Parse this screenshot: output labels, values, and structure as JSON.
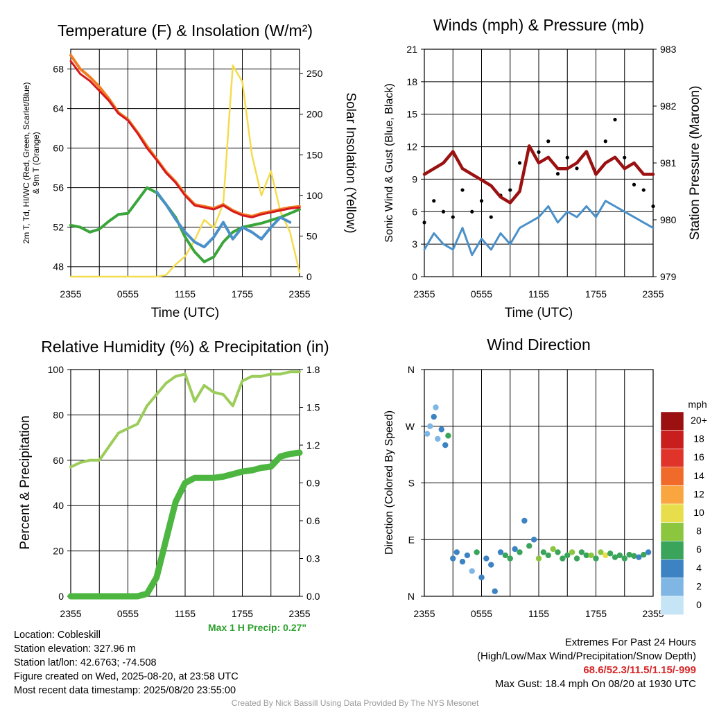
{
  "colors": {
    "temp": "#d7191c",
    "dewpoint": "#3aa53a",
    "heatindex": "#4a90c9",
    "temp9m": "#f17d22",
    "solar": "#f4dc4e",
    "wind": "#4a90c9",
    "gust": "#000000",
    "pressure": "#9b1111",
    "rh": "#9ccc5a",
    "precip": "#4db640",
    "maxprecip": "#2ca02c",
    "extremes": "#d62728",
    "credit": "#9a9a9a"
  },
  "x_ticks": [
    "2355",
    "0555",
    "1155",
    "1755",
    "2355"
  ],
  "chart_data": [
    {
      "type": "line",
      "title": "Temperature (F) & Insolation (W/m²)",
      "xlabel": "Time (UTC)",
      "ylabel": "2m T, Td, HI/WC (Red, Green, Scarlet/Blue) & 9m T (Orange)",
      "y2label": "Solar Insolation (Yellow)",
      "ylim": [
        47,
        70
      ],
      "y_ticks": [
        48,
        52,
        56,
        60,
        64,
        68
      ],
      "y2lim": [
        0,
        280
      ],
      "y2_ticks": [
        0,
        50,
        100,
        150,
        200,
        250
      ],
      "x": [
        0,
        1,
        2,
        3,
        4,
        5,
        6,
        7,
        8,
        9,
        10,
        11,
        12,
        13,
        14,
        15,
        16,
        17,
        18,
        19,
        20,
        21,
        22,
        23,
        24
      ],
      "series": [
        {
          "values": [
            68.8,
            67.5,
            66.8,
            65.8,
            64.8,
            63.5,
            62.8,
            61.5,
            60.0,
            58.8,
            57.5,
            56.5,
            55.2,
            54.2,
            54.0,
            53.8,
            54.2,
            53.6,
            53.2,
            53.0,
            53.3,
            53.5,
            53.7,
            53.9,
            54.0
          ]
        },
        {
          "values": [
            52.2,
            52.0,
            51.5,
            51.8,
            52.6,
            53.3,
            53.4,
            54.7,
            56.0,
            55.5,
            54.3,
            53.0,
            51.0,
            49.5,
            48.5,
            49.0,
            50.5,
            51.5,
            52.0,
            52.2,
            52.4,
            52.7,
            53.0,
            53.4,
            53.8
          ]
        },
        {
          "values": [
            null,
            null,
            null,
            null,
            null,
            null,
            null,
            null,
            null,
            55.6,
            54.3,
            52.8,
            51.5,
            50.5,
            50.0,
            51.0,
            52.5,
            50.8,
            52.0,
            51.5,
            50.8,
            52.0,
            53.0,
            52.5,
            null
          ]
        },
        {
          "values": [
            69.4,
            68.0,
            67.2,
            66.2,
            65.0,
            63.6,
            62.9,
            61.6,
            60.2,
            58.9,
            57.6,
            56.6,
            55.3,
            54.3,
            54.1,
            53.9,
            54.3,
            53.7,
            53.3,
            53.1,
            53.4,
            53.6,
            53.8,
            54.0,
            54.1
          ]
        },
        {
          "values": [
            0,
            0,
            0,
            0,
            0,
            0,
            0,
            0,
            0,
            0,
            2,
            15,
            25,
            45,
            70,
            60,
            90,
            260,
            240,
            150,
            100,
            130,
            80,
            55,
            5
          ]
        }
      ]
    },
    {
      "type": "line",
      "title": "Winds (mph) & Pressure (mb)",
      "xlabel": "Time (UTC)",
      "ylabel": "Sonic Wind & Gust (Blue, Black)",
      "y2label": "Station Pressure (Maroon)",
      "ylim": [
        0,
        21
      ],
      "y_ticks": [
        0,
        3,
        6,
        9,
        12,
        15,
        18,
        21
      ],
      "y2lim": [
        979,
        983
      ],
      "y2_ticks": [
        979,
        980,
        981,
        982,
        983
      ],
      "x": [
        0,
        1,
        2,
        3,
        4,
        5,
        6,
        7,
        8,
        9,
        10,
        11,
        12,
        13,
        14,
        15,
        16,
        17,
        18,
        19,
        20,
        21,
        22,
        23,
        24
      ],
      "series": [
        {
          "values": [
            2.5,
            4.0,
            3.0,
            2.5,
            4.5,
            2.0,
            3.5,
            2.5,
            4.0,
            3.0,
            4.5,
            5.0,
            5.5,
            6.5,
            5.0,
            6.0,
            5.5,
            6.5,
            5.5,
            7.0,
            6.5,
            6.0,
            5.5,
            5.0,
            4.5
          ]
        },
        {
          "values": [
            5.0,
            7.0,
            6.0,
            5.5,
            8.0,
            6.0,
            7.0,
            5.5,
            7.5,
            8.0,
            10.5,
            12.0,
            11.5,
            12.5,
            9.5,
            11.0,
            10.0,
            11.5,
            9.5,
            12.5,
            14.5,
            11.0,
            8.5,
            8.0,
            6.5
          ]
        },
        {
          "values": [
            980.8,
            980.9,
            981.0,
            981.2,
            980.9,
            980.8,
            980.7,
            980.6,
            980.4,
            980.3,
            980.5,
            981.3,
            981.0,
            981.1,
            980.9,
            980.9,
            981.0,
            981.2,
            980.8,
            981.0,
            981.1,
            980.9,
            981.0,
            980.8,
            980.8
          ]
        }
      ]
    },
    {
      "type": "line",
      "title": "Relative Humidity (%) & Precipitation (in)",
      "xlabel": "",
      "ylabel": "Percent & Precipitation",
      "ylim": [
        0,
        100
      ],
      "y_ticks": [
        0,
        20,
        40,
        60,
        80,
        100
      ],
      "y2lim": [
        0,
        1.8
      ],
      "y2_ticks": [
        "0.0",
        "0.3",
        "0.6",
        "0.9",
        "1.2",
        "1.5",
        "1.8"
      ],
      "x": [
        0,
        1,
        2,
        3,
        4,
        5,
        6,
        7,
        8,
        9,
        10,
        11,
        12,
        13,
        14,
        15,
        16,
        17,
        18,
        19,
        20,
        21,
        22,
        23,
        24
      ],
      "series": [
        {
          "values": [
            57,
            59,
            60,
            60,
            66,
            72,
            74,
            76,
            84,
            89,
            94,
            97,
            98,
            86,
            93,
            90,
            89,
            84,
            95,
            97,
            97,
            98,
            98,
            99,
            99
          ]
        },
        {
          "values": [
            0,
            0,
            0,
            0,
            0,
            0,
            0,
            0,
            0.02,
            0.15,
            0.45,
            0.75,
            0.9,
            0.94,
            0.94,
            0.94,
            0.95,
            0.97,
            0.99,
            1.0,
            1.02,
            1.03,
            1.11,
            1.13,
            1.14
          ]
        }
      ],
      "annotation": "Max 1 H Precip: 0.27\""
    },
    {
      "type": "scatter",
      "title": "Wind Direction",
      "ylabel": "Direction (Colored By Speed)",
      "y_ticks": [
        "N",
        "E",
        "S",
        "W",
        "N"
      ],
      "legend_title": "mph",
      "legend_labels": [
        "20+",
        "18",
        "16",
        "14",
        "12",
        "10",
        "8",
        "6",
        "4",
        "2",
        "0"
      ],
      "legend_colors": [
        "#9b1111",
        "#c81e1e",
        "#e0342a",
        "#f06a2a",
        "#f9a640",
        "#e8de4c",
        "#8cc63e",
        "#3aa55a",
        "#3d83c4",
        "#7fb6e3",
        "#c5e4f6"
      ],
      "x": [
        0.3,
        0.6,
        1.0,
        1.4,
        1.8,
        2.2,
        2.5,
        1.2,
        3.0,
        3.4,
        4.0,
        4.5,
        5.0,
        5.5,
        6.0,
        6.5,
        7.0,
        7.4,
        8.0,
        8.5,
        9.0,
        9.5,
        10.0,
        10.5,
        11.0,
        11.5,
        12.0,
        12.5,
        13.0,
        13.5,
        14.0,
        14.5,
        15.0,
        15.5,
        16.0,
        16.5,
        17.0,
        17.5,
        18.0,
        18.5,
        19.0,
        19.5,
        20.0,
        20.5,
        21.0,
        21.5,
        22.0,
        22.5,
        23.0,
        23.5
      ],
      "values": [
        258,
        270,
        285,
        250,
        265,
        240,
        255,
        300,
        60,
        70,
        55,
        65,
        40,
        70,
        30,
        60,
        50,
        8,
        70,
        65,
        60,
        75,
        70,
        120,
        80,
        90,
        60,
        70,
        65,
        75,
        70,
        60,
        65,
        70,
        60,
        70,
        65,
        65,
        60,
        70,
        65,
        68,
        62,
        65,
        60,
        66,
        64,
        62,
        66,
        70
      ],
      "speeds": [
        2,
        2,
        3,
        2,
        4,
        3,
        6,
        2,
        4,
        4,
        3,
        4,
        2,
        5,
        3,
        4,
        4,
        3,
        4,
        5,
        6,
        4,
        5,
        4,
        6,
        4,
        8,
        6,
        5,
        7,
        6,
        5,
        6,
        7,
        6,
        5,
        6,
        7,
        6,
        8,
        10,
        6,
        5,
        6,
        5,
        6,
        5,
        4,
        5,
        4
      ]
    }
  ],
  "footer_left": {
    "location": "Location: Cobleskill",
    "elevation": "Station elevation: 327.96 m",
    "latlon": "Station lat/lon: 42.6763; -74.508",
    "created": "Figure created on Wed, 2025-08-20, at 23:58 UTC",
    "recent": "Most recent data timestamp: 2025/08/20 23:55:00"
  },
  "footer_right": {
    "line1": "Extremes For Past 24 Hours",
    "line2": "(High/Low/Max Wind/Precipitation/Snow Depth)",
    "values": "68.6/52.3/11.5/1.15/-999",
    "gust": "Max Gust: 18.4 mph On 08/20 at 1930 UTC"
  },
  "credit": "Created By Nick Bassill Using Data Provided By The NYS Mesonet"
}
